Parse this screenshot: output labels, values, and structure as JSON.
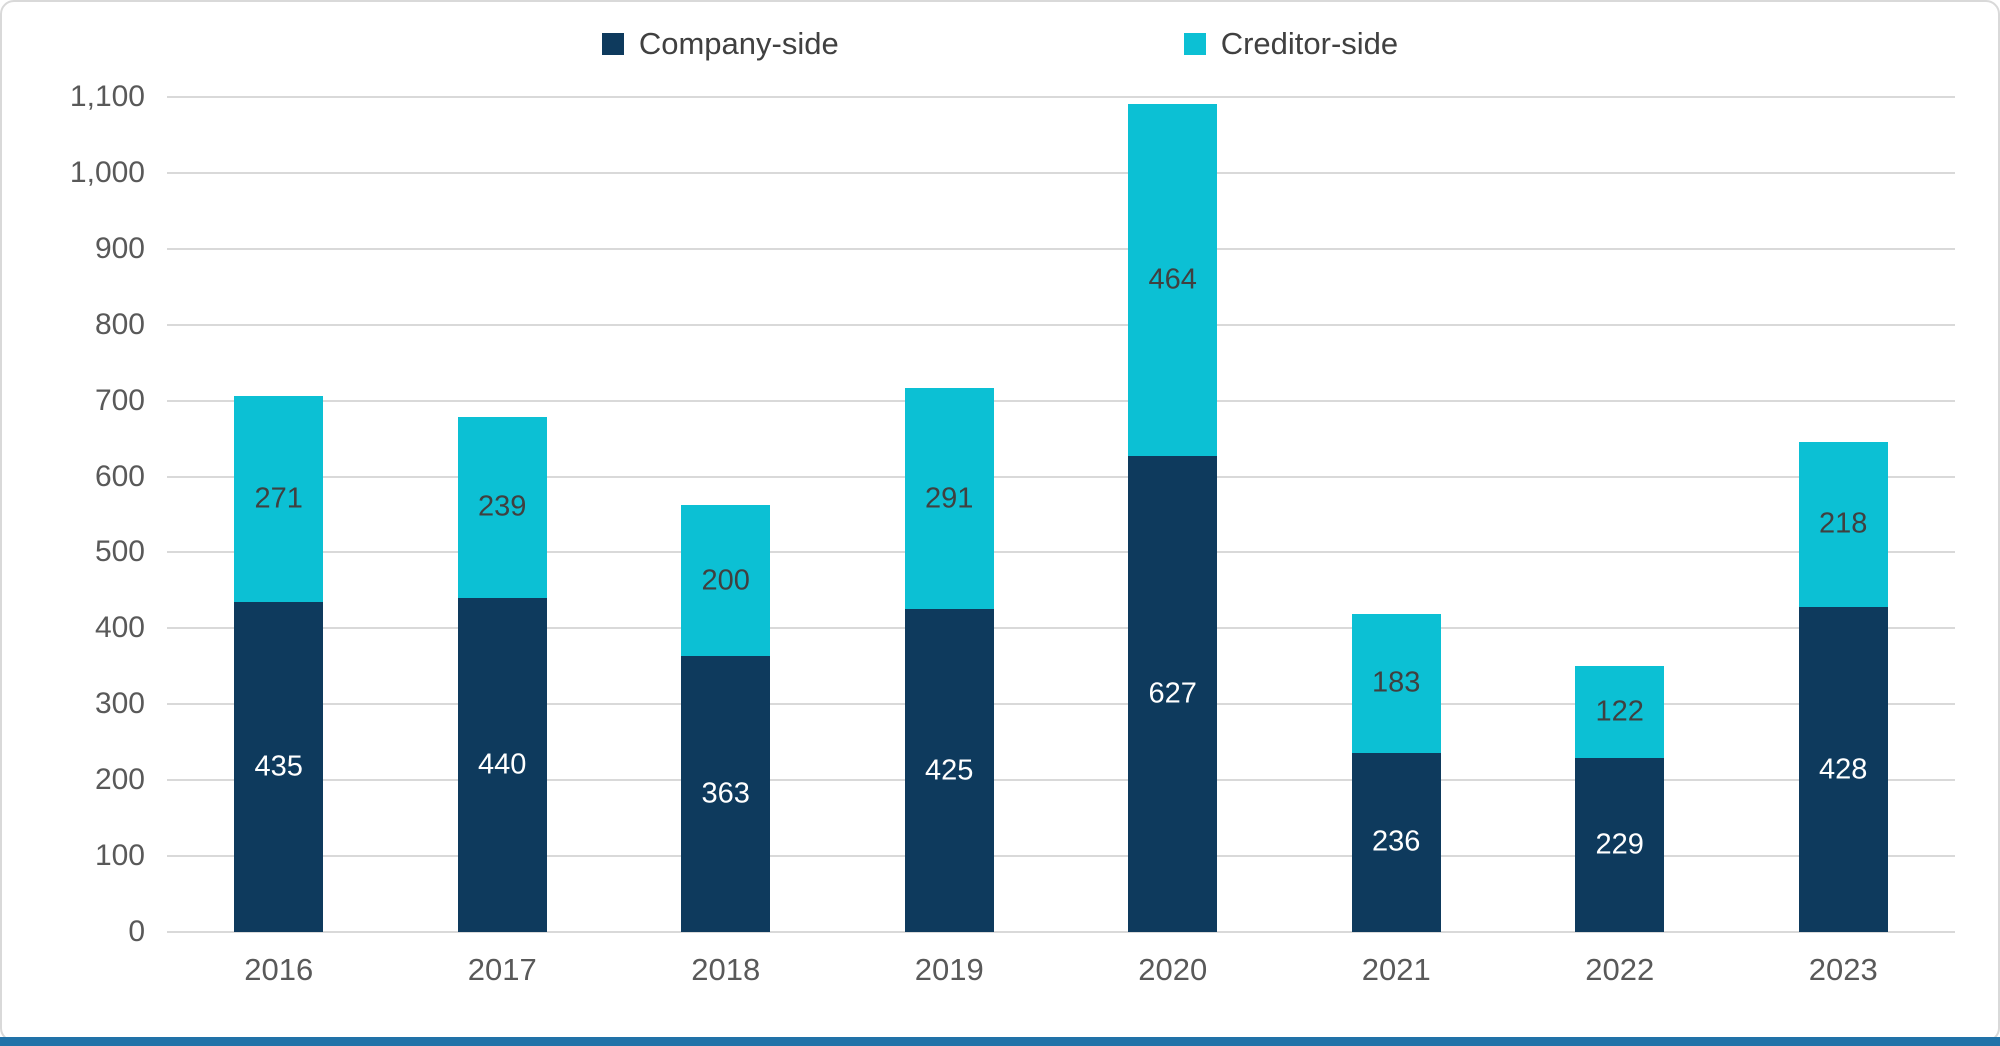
{
  "chart_data": {
    "type": "bar",
    "subtype": "stacked",
    "title": "",
    "xlabel": "",
    "ylabel": "",
    "categories": [
      "2016",
      "2017",
      "2018",
      "2019",
      "2020",
      "2021",
      "2022",
      "2023"
    ],
    "series": [
      {
        "name": "Company-side",
        "color": "#0E3A5D",
        "label_color": "#FFFFFF",
        "values": [
          435,
          440,
          363,
          425,
          627,
          236,
          229,
          428
        ]
      },
      {
        "name": "Creditor-side",
        "color": "#0CC0D4",
        "label_color": "#404040",
        "values": [
          271,
          239,
          200,
          291,
          464,
          183,
          122,
          218
        ]
      }
    ],
    "ylim": [
      0,
      1100
    ],
    "ytick_step": 100,
    "y_tick_labels": [
      "0",
      "100",
      "200",
      "300",
      "400",
      "500",
      "600",
      "700",
      "800",
      "900",
      "1,000",
      "1,100"
    ],
    "grid": true,
    "legend_position": "top"
  },
  "colors": {
    "background": "#FFFFFF",
    "chart_border": "#D9D9D9",
    "gridline": "#D9D9D9",
    "axis_text": "#595959",
    "legend_text": "#404040",
    "footer_bar": "#2172A8"
  }
}
